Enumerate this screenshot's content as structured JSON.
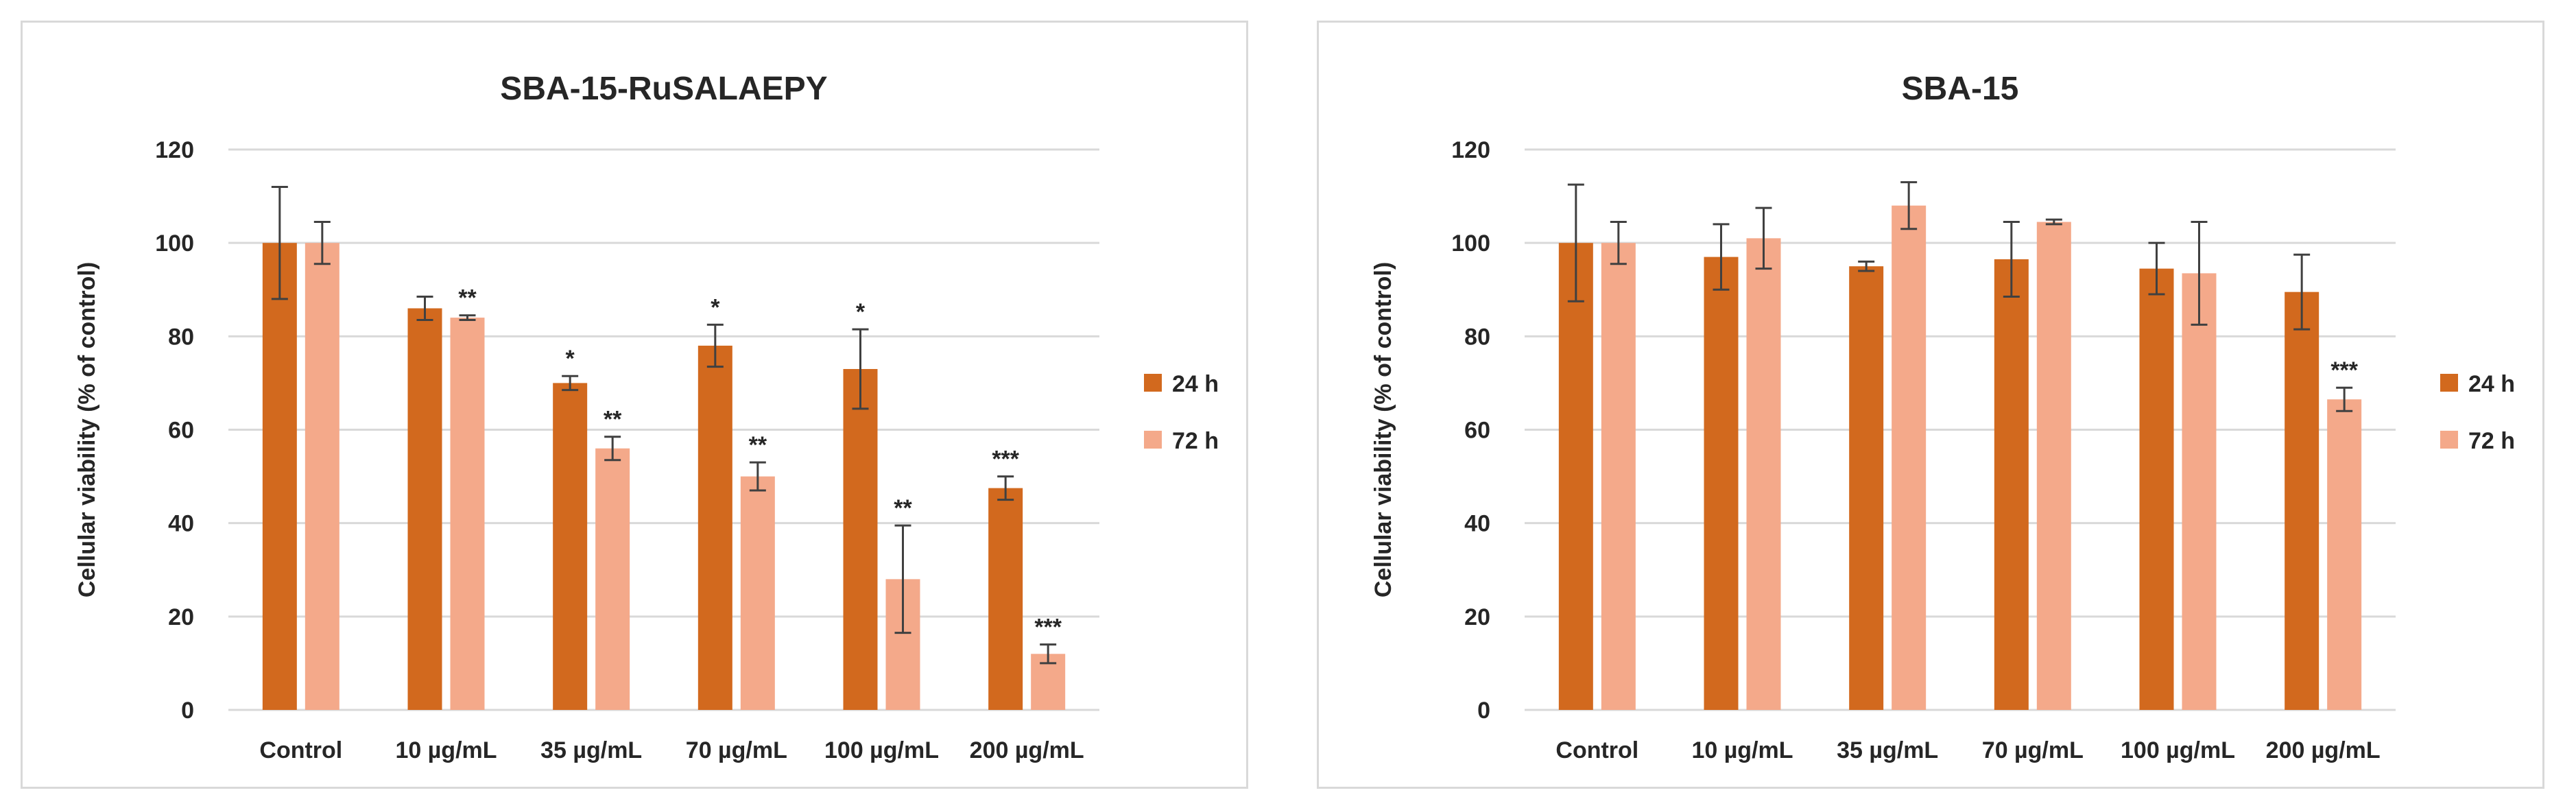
{
  "colors": {
    "series_24h": "#D2691E",
    "series_72h": "#F4A98A",
    "grid": "#d9d9d9",
    "error_bar": "#404040"
  },
  "chart_data": [
    {
      "type": "bar",
      "title": "SBA-15-RuSALAEPY",
      "ylabel": "Cellular viability (% of control)",
      "xlabel": "",
      "ylim": [
        0,
        120
      ],
      "yticks": [
        0,
        20,
        40,
        60,
        80,
        100,
        120
      ],
      "grid": true,
      "legend_position": "right",
      "categories": [
        "Control",
        "10 µg/mL",
        "35 µg/mL",
        "70 µg/mL",
        "100 µg/mL",
        "200 µg/mL"
      ],
      "series": [
        {
          "name": "24 h",
          "values": [
            100,
            86,
            70,
            78,
            73,
            47.5
          ],
          "errors": [
            12,
            2.5,
            1.5,
            4.5,
            8.5,
            2.5
          ],
          "annotations": [
            "",
            "",
            "*",
            "*",
            "*",
            "***"
          ]
        },
        {
          "name": "72 h",
          "values": [
            100,
            84,
            56,
            50,
            28,
            12
          ],
          "errors": [
            4.5,
            0.5,
            2.5,
            3,
            11.5,
            2
          ],
          "annotations": [
            "",
            "**",
            "**",
            "**",
            "**",
            "***"
          ]
        }
      ]
    },
    {
      "type": "bar",
      "title": "SBA-15",
      "ylabel": "Cellular viability (% of control)",
      "xlabel": "",
      "ylim": [
        0,
        120
      ],
      "yticks": [
        0,
        20,
        40,
        60,
        80,
        100,
        120
      ],
      "grid": true,
      "legend_position": "right",
      "categories": [
        "Control",
        "10 µg/mL",
        "35 µg/mL",
        "70 µg/mL",
        "100 µg/mL",
        "200 µg/mL"
      ],
      "series": [
        {
          "name": "24 h",
          "values": [
            100,
            97,
            95,
            96.5,
            94.5,
            89.5
          ],
          "errors": [
            12.5,
            7,
            1,
            8,
            5.5,
            8
          ],
          "annotations": [
            "",
            "",
            "",
            "",
            "",
            ""
          ]
        },
        {
          "name": "72 h",
          "values": [
            100,
            101,
            108,
            104.5,
            93.5,
            66.5
          ],
          "errors": [
            4.5,
            6.5,
            5,
            0.5,
            11,
            2.5
          ],
          "annotations": [
            "",
            "",
            "",
            "",
            "",
            "***"
          ]
        }
      ]
    }
  ]
}
